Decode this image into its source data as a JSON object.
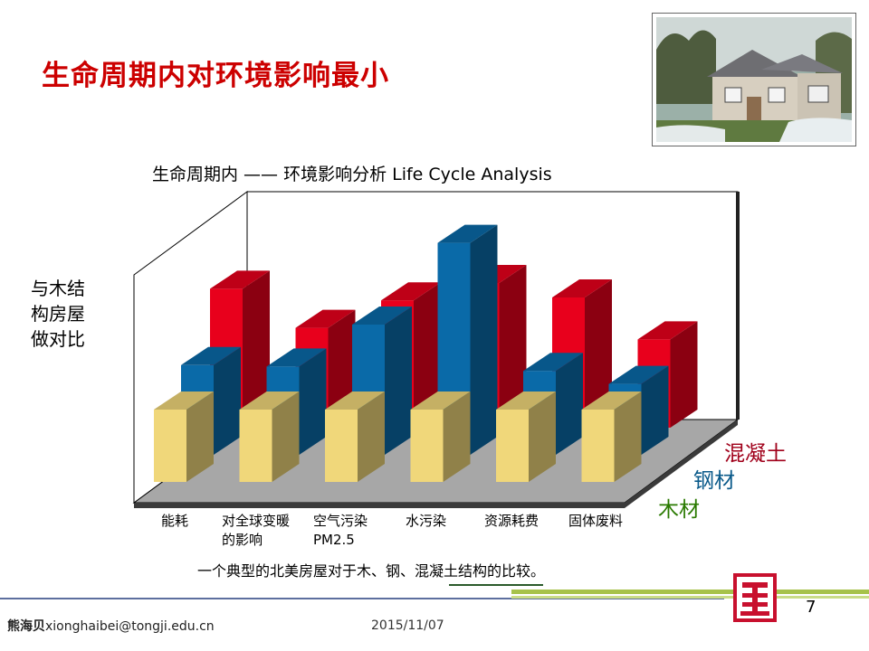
{
  "slide": {
    "title": "生命周期内对环境影响最小",
    "caption": "一个典型的北美房屋对于木、钢、混凝土结构的比较。",
    "page_number": "7"
  },
  "footer": {
    "author_name": "熊海贝",
    "author_email": "xionghaibei@tongji.edu.cn",
    "date": "2015/11/07"
  },
  "chart_data": {
    "type": "bar",
    "title": "生命周期内 —— 环境影响分析 Life Cycle Analysis",
    "ylabel_lines": [
      "与木结",
      "构房屋",
      "做对比"
    ],
    "categories": [
      {
        "line1": "能耗",
        "line2": ""
      },
      {
        "line1": "对全球变暖",
        "line2": "的影响"
      },
      {
        "line1": "空气污染",
        "line2": "PM2.5"
      },
      {
        "line1": "水污染",
        "line2": ""
      },
      {
        "line1": "资源耗费",
        "line2": ""
      },
      {
        "line1": "固体废料",
        "line2": ""
      }
    ],
    "series": [
      {
        "name": "混凝土",
        "color": "#e8001c",
        "values": [
          1.92,
          1.38,
          1.76,
          2.0,
          1.8,
          1.22
        ]
      },
      {
        "name": "钢材",
        "color": "#0a6aa8",
        "values": [
          1.24,
          1.22,
          1.8,
          2.93,
          1.16,
          0.98
        ]
      },
      {
        "name": "木材",
        "color": "#f0d77a",
        "values": [
          1.0,
          1.0,
          1.0,
          1.0,
          1.0,
          1.0
        ]
      }
    ],
    "ylim": [
      0,
      3.4
    ],
    "grid": false,
    "legend_position": "bottom-right"
  }
}
